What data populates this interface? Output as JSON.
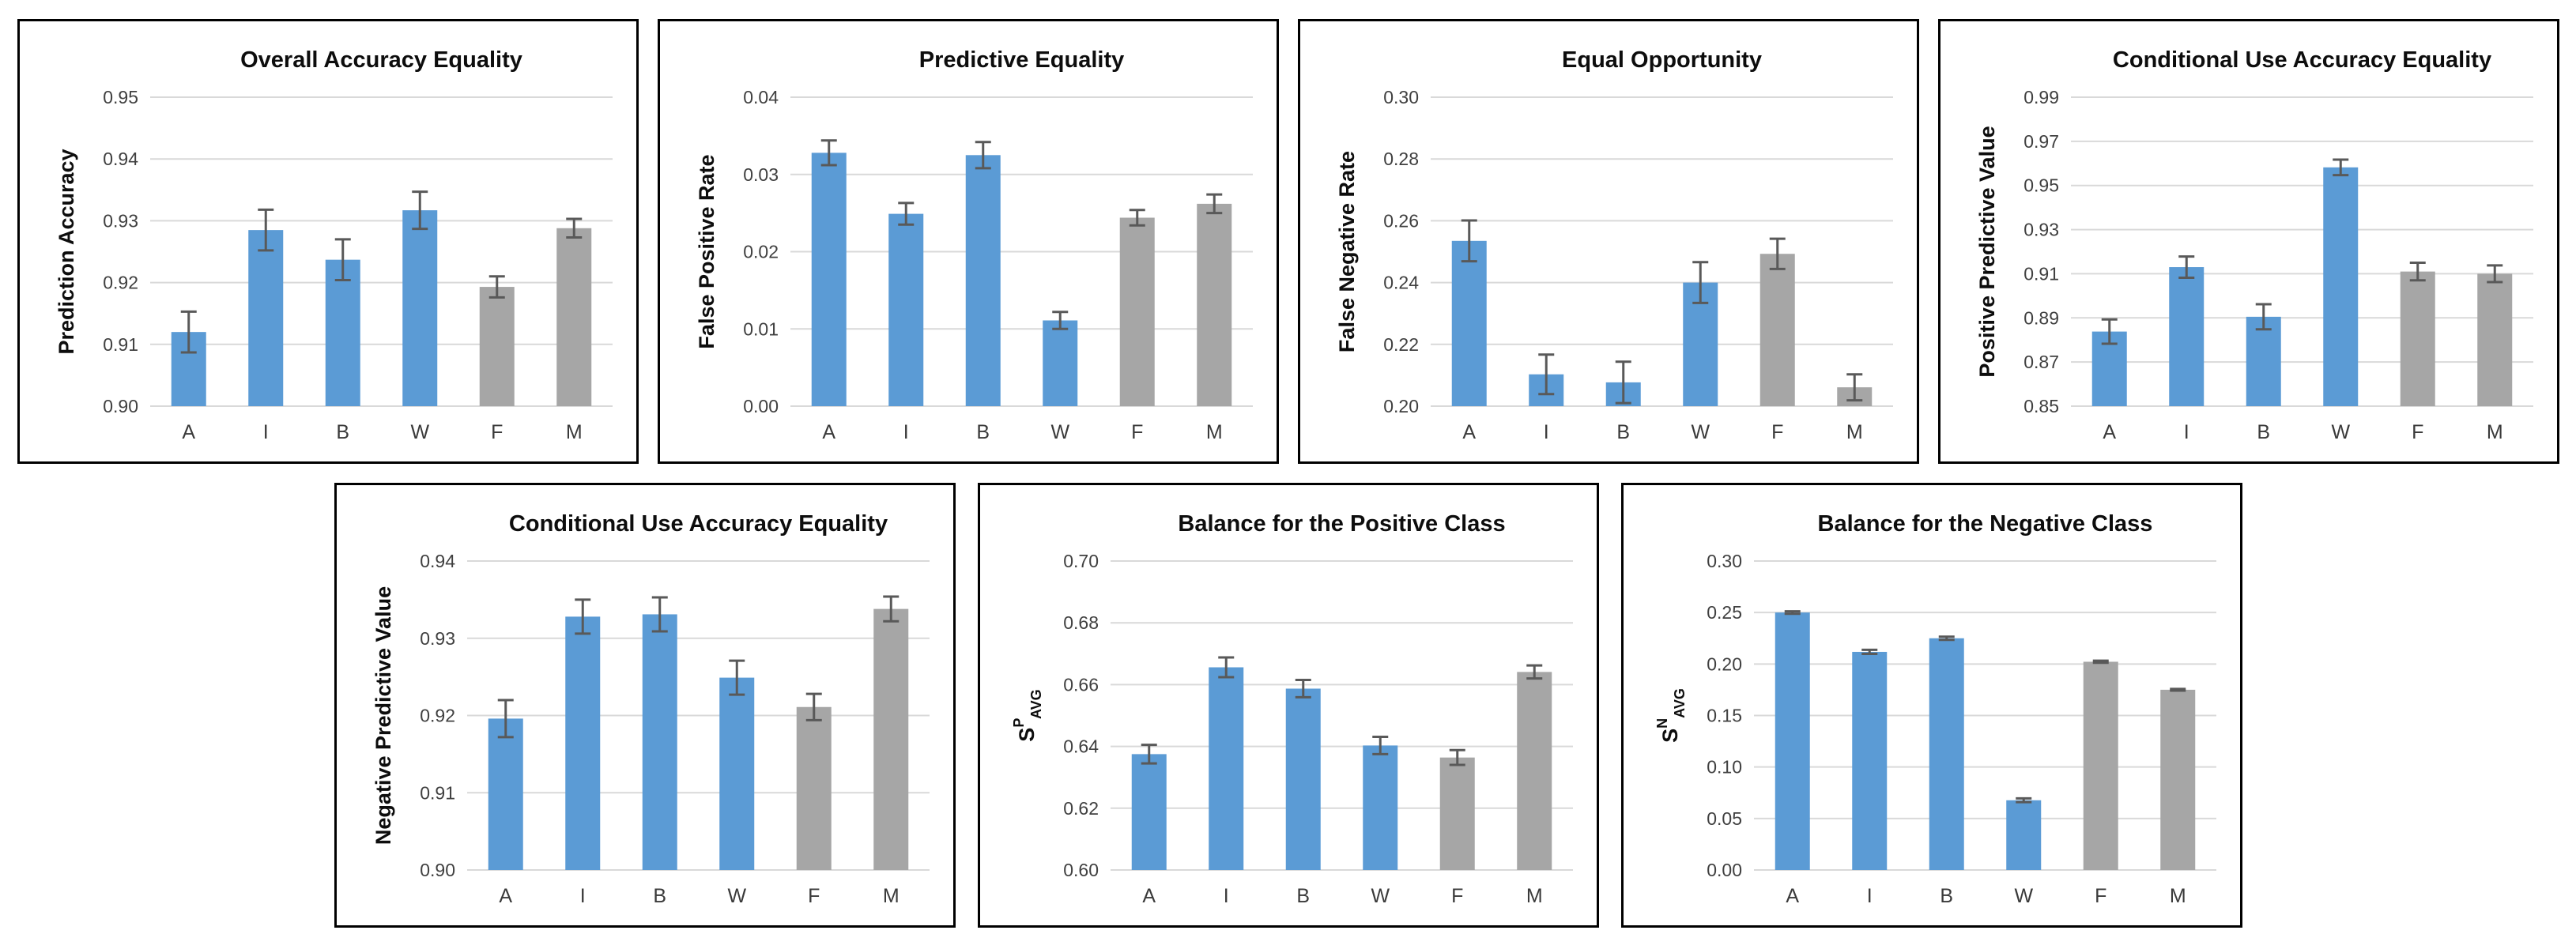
{
  "figure": {
    "description": "Seven bar charts of group fairness metrics across groups",
    "background": "#ffffff"
  },
  "colors": {
    "bar_blue": "#5B9BD5",
    "bar_gray": "#A6A6A6",
    "error_bar": "#595959",
    "gridline": "#D9D9D9",
    "panel_border": "#000000",
    "tick_text": "#404040",
    "title_text": "#0d0d0d"
  },
  "categories": [
    "A",
    "I",
    "B",
    "W",
    "F",
    "M"
  ],
  "bar_colors_by_category": [
    "blue",
    "blue",
    "blue",
    "blue",
    "gray",
    "gray"
  ],
  "chart_data": [
    {
      "id": "overall-accuracy-equality",
      "type": "bar",
      "row": 1,
      "title": "Overall Accuracy Equality",
      "ylabel": "Prediction Accuracy",
      "categories": [
        "A",
        "I",
        "B",
        "W",
        "F",
        "M"
      ],
      "values": [
        0.912,
        0.9285,
        0.9237,
        0.9317,
        0.9193,
        0.9288
      ],
      "errors": [
        0.0033,
        0.0033,
        0.0033,
        0.003,
        0.0017,
        0.0015
      ],
      "ylim": [
        0.9,
        0.95
      ],
      "yticks": [
        "0.90",
        "0.91",
        "0.92",
        "0.93",
        "0.94",
        "0.95"
      ],
      "grid": true,
      "legend": false
    },
    {
      "id": "predictive-equality",
      "type": "bar",
      "row": 1,
      "title": "Predictive Equality",
      "ylabel": "False Positive Rate",
      "categories": [
        "A",
        "I",
        "B",
        "W",
        "F",
        "M"
      ],
      "values": [
        0.0328,
        0.0249,
        0.0325,
        0.0111,
        0.0244,
        0.0262
      ],
      "errors": [
        0.0016,
        0.0014,
        0.0017,
        0.0011,
        0.001,
        0.0012
      ],
      "ylim": [
        0.0,
        0.04
      ],
      "yticks": [
        "0.00",
        "0.01",
        "0.02",
        "0.03",
        "0.04"
      ],
      "grid": true,
      "legend": false
    },
    {
      "id": "equal-opportunity",
      "type": "bar",
      "row": 1,
      "title": "Equal Opportunity",
      "ylabel": "False Negative Rate",
      "categories": [
        "A",
        "I",
        "B",
        "W",
        "F",
        "M"
      ],
      "values": [
        0.2535,
        0.2103,
        0.2077,
        0.24,
        0.2493,
        0.2061
      ],
      "errors": [
        0.0066,
        0.0064,
        0.0067,
        0.0066,
        0.0049,
        0.0042
      ],
      "ylim": [
        0.2,
        0.3
      ],
      "yticks": [
        "0.20",
        "0.22",
        "0.24",
        "0.26",
        "0.28",
        "0.30"
      ],
      "grid": true,
      "legend": false
    },
    {
      "id": "conditional-use-accuracy-equality-ppv",
      "type": "bar",
      "row": 1,
      "title": "Conditional Use Accuracy Equality",
      "ylabel": "Positive Predictive Value",
      "categories": [
        "A",
        "I",
        "B",
        "W",
        "F",
        "M"
      ],
      "values": [
        0.8838,
        0.913,
        0.8905,
        0.9582,
        0.911,
        0.91
      ],
      "errors": [
        0.0055,
        0.0048,
        0.0057,
        0.0035,
        0.004,
        0.0038
      ],
      "ylim": [
        0.85,
        0.99
      ],
      "yticks": [
        "0.85",
        "0.87",
        "0.89",
        "0.91",
        "0.93",
        "0.95",
        "0.97",
        "0.99"
      ],
      "grid": true,
      "legend": false
    },
    {
      "id": "conditional-use-accuracy-equality-npv",
      "type": "bar",
      "row": 2,
      "title": "Conditional Use Accuracy Equality",
      "ylabel": "Negative Predictive Value",
      "categories": [
        "A",
        "I",
        "B",
        "W",
        "F",
        "M"
      ],
      "values": [
        0.9196,
        0.9328,
        0.9331,
        0.9249,
        0.9211,
        0.9338
      ],
      "errors": [
        0.0024,
        0.0022,
        0.0022,
        0.0022,
        0.0017,
        0.0016
      ],
      "ylim": [
        0.9,
        0.94
      ],
      "yticks": [
        "0.90",
        "0.91",
        "0.92",
        "0.93",
        "0.94"
      ],
      "grid": true,
      "legend": false
    },
    {
      "id": "balance-positive-class",
      "type": "bar",
      "row": 2,
      "title": "Balance for the Positive Class",
      "ylabel": "S^P_AVG",
      "ylabel_parts": {
        "base": "S",
        "sup": "P",
        "sub": "AVG"
      },
      "categories": [
        "A",
        "I",
        "B",
        "W",
        "F",
        "M"
      ],
      "values": [
        0.6375,
        0.6656,
        0.6587,
        0.6403,
        0.6364,
        0.6641
      ],
      "errors": [
        0.003,
        0.0032,
        0.0028,
        0.0028,
        0.0024,
        0.0021
      ],
      "ylim": [
        0.6,
        0.7
      ],
      "yticks": [
        "0.60",
        "0.62",
        "0.64",
        "0.66",
        "0.68",
        "0.70"
      ],
      "grid": true,
      "legend": false
    },
    {
      "id": "balance-negative-class",
      "type": "bar",
      "row": 2,
      "title": "Balance for the Negative Class",
      "ylabel": "S^N_AVG",
      "ylabel_parts": {
        "base": "S",
        "sup": "N",
        "sub": "AVG"
      },
      "categories": [
        "A",
        "I",
        "B",
        "W",
        "F",
        "M"
      ],
      "values": [
        0.25,
        0.2118,
        0.225,
        0.0677,
        0.2022,
        0.175
      ],
      "errors": [
        0.0012,
        0.002,
        0.0015,
        0.0018,
        0.001,
        0.0008
      ],
      "ylim": [
        0.0,
        0.3
      ],
      "yticks": [
        "0.00",
        "0.05",
        "0.10",
        "0.15",
        "0.20",
        "0.25",
        "0.30"
      ],
      "grid": true,
      "legend": false
    }
  ]
}
